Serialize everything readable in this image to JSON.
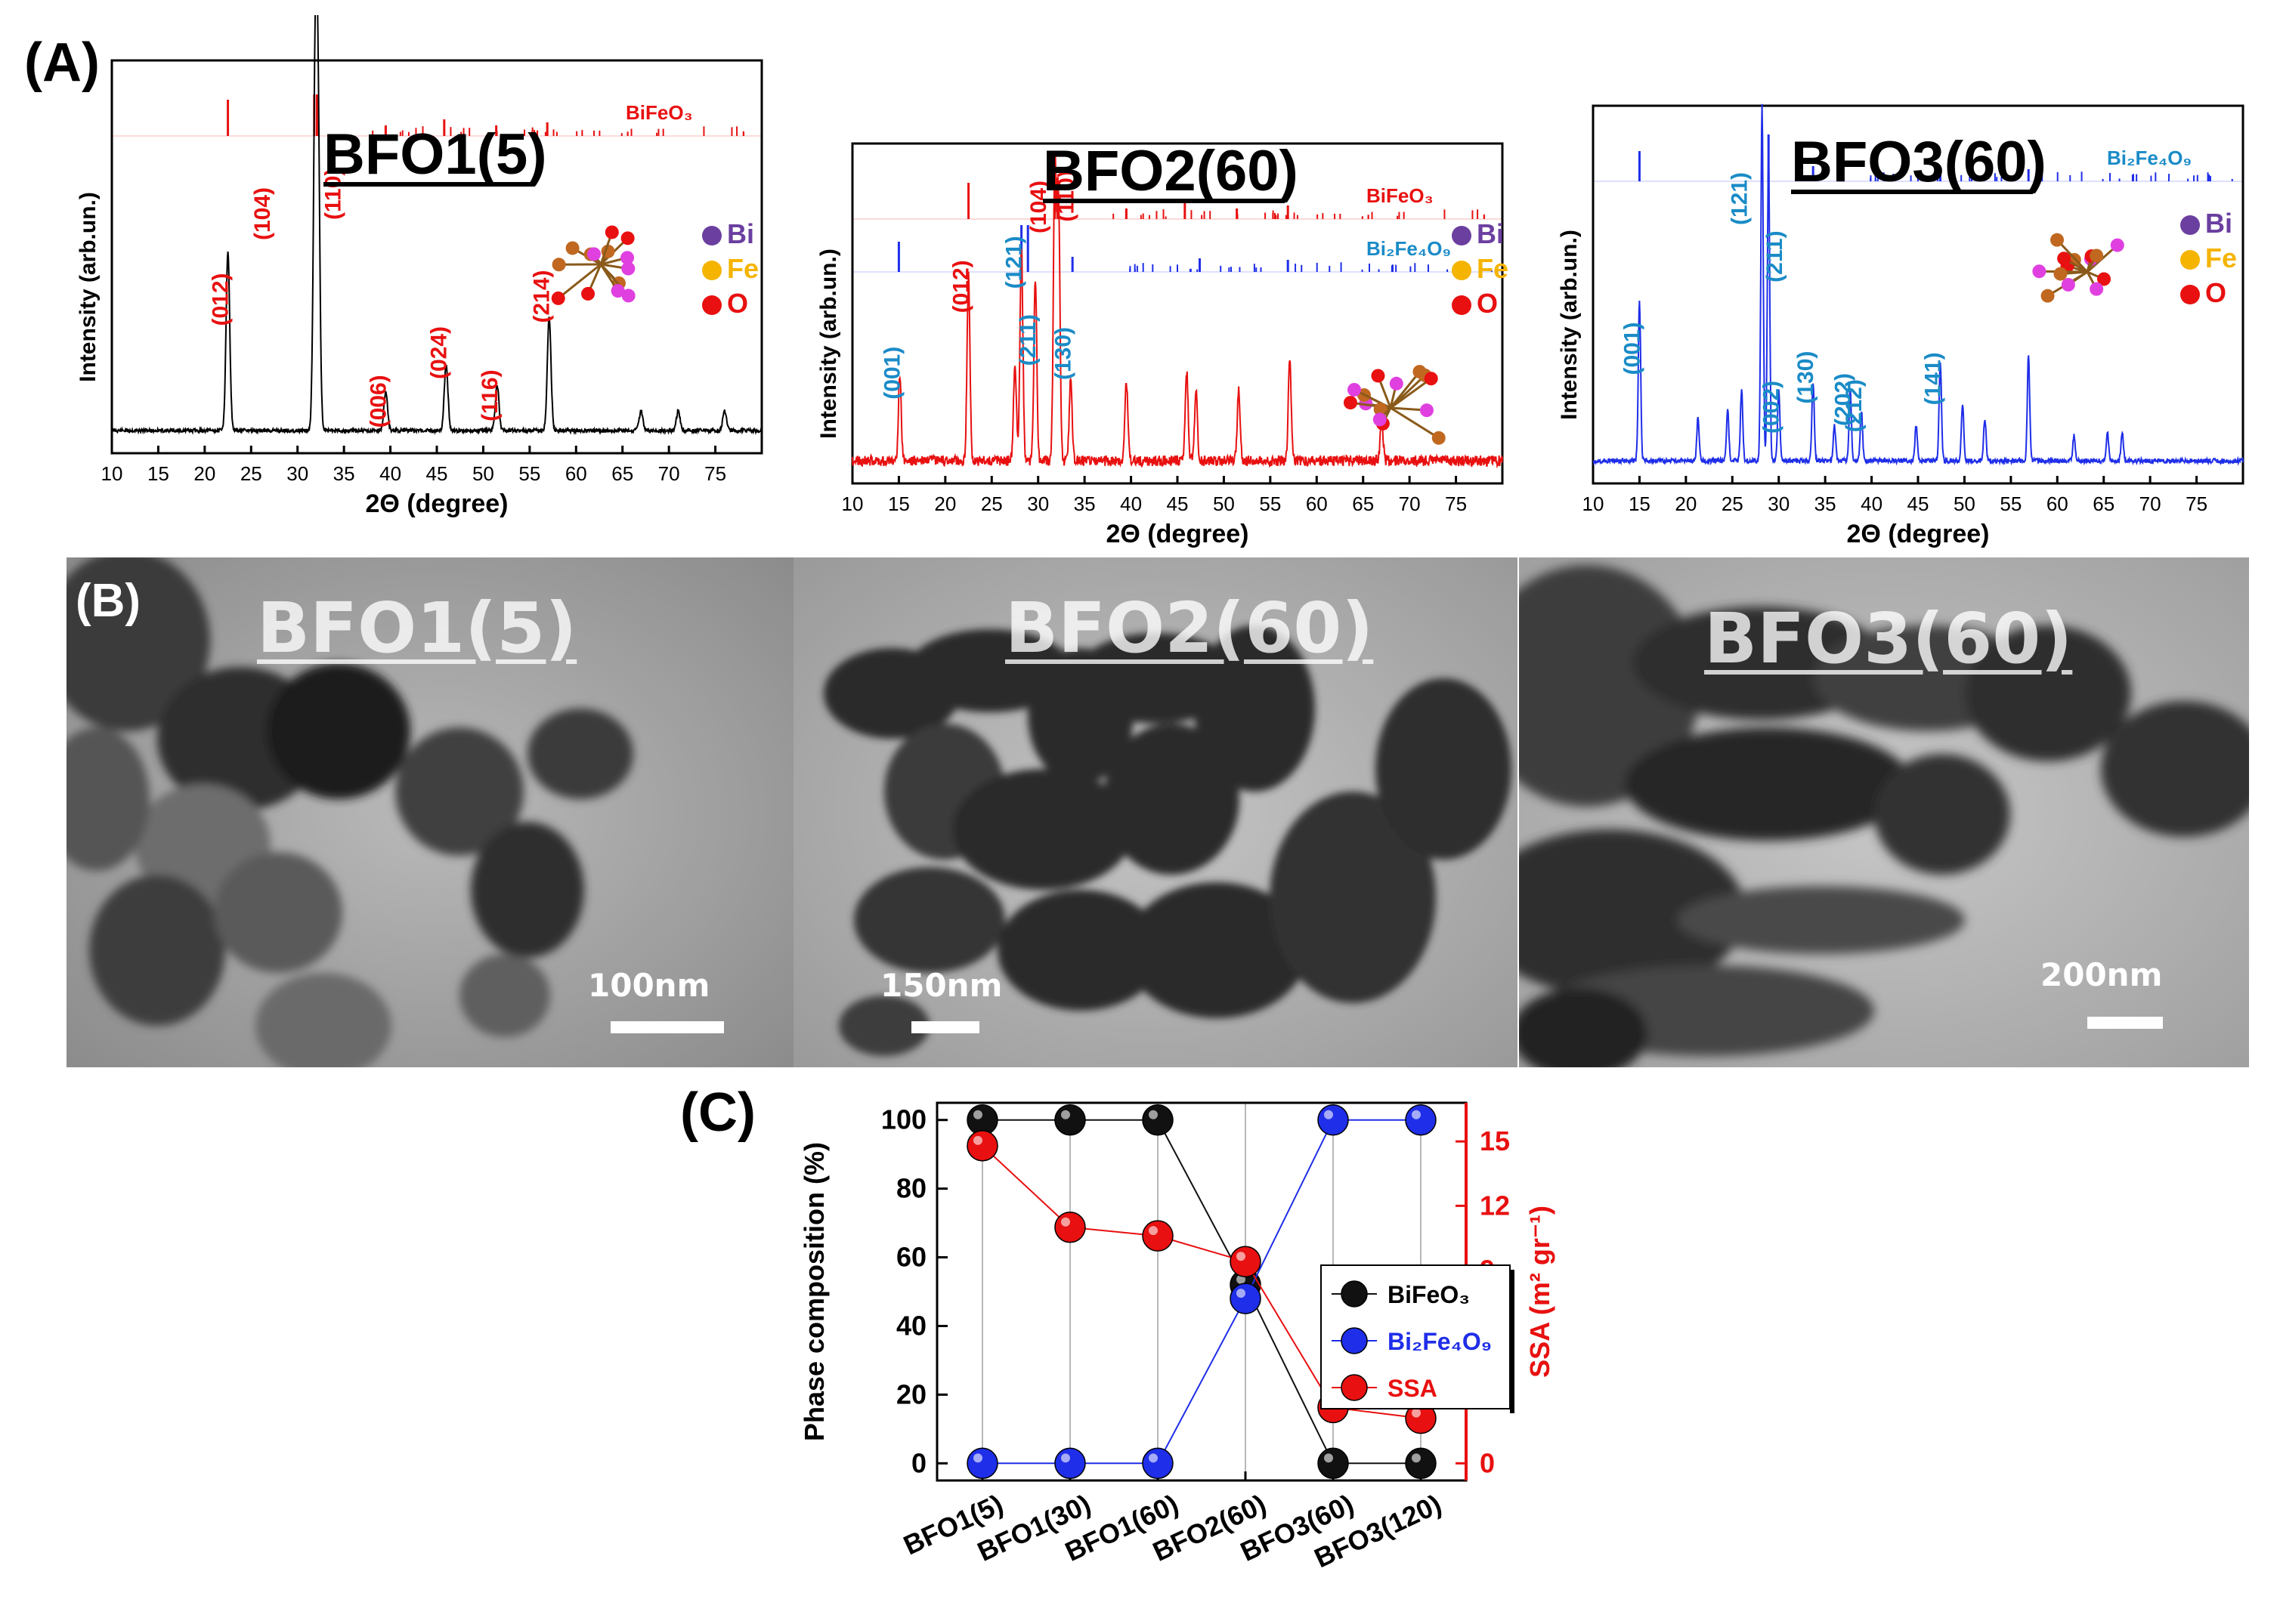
{
  "panels": {
    "a_label": "(A)",
    "b_label": "(B)",
    "c_label": "(C)"
  },
  "xrd": {
    "y_label": "Intensity (arb.un.)",
    "x_label": "2Θ (degree)",
    "x_ticks": [
      "10",
      "15",
      "20",
      "25",
      "30",
      "35",
      "40",
      "45",
      "50",
      "55",
      "60",
      "65",
      "70",
      "75"
    ],
    "xlim": [
      10,
      80
    ],
    "legend": [
      {
        "symbol": "Bi",
        "color": "#6b3fa0"
      },
      {
        "symbol": "Fe",
        "color": "#f5b400"
      },
      {
        "symbol": "O",
        "color": "#e81010"
      }
    ],
    "ref_labels": {
      "bifeo3": "BiFeO₃",
      "bi2fe4o9": "Bi₂Fe₄O₉"
    }
  },
  "chart_data": [
    {
      "type": "line",
      "title": "BFO1(5)",
      "xlabel": "2Θ (degree)",
      "ylabel": "Intensity (arb.un.)",
      "color": "#000000",
      "xlim": [
        10,
        80
      ],
      "reference_patterns": [
        "BiFeO₃"
      ],
      "peaks": [
        {
          "x": 22.5,
          "h": 0.55,
          "label": "(012)",
          "label_color": "#e81010"
        },
        {
          "x": 31.9,
          "h": 1.0,
          "label": "(104)",
          "label_color": "#e81010"
        },
        {
          "x": 32.2,
          "h": 0.9,
          "label": "(110)",
          "label_color": "#e81010"
        },
        {
          "x": 39.5,
          "h": 0.12,
          "label": "(006)",
          "label_color": "#e81010"
        },
        {
          "x": 46.0,
          "h": 0.2,
          "label": "(024)",
          "label_color": "#e81010"
        },
        {
          "x": 51.5,
          "h": 0.14,
          "label": "(116)",
          "label_color": "#e81010"
        },
        {
          "x": 57.1,
          "h": 0.35,
          "label": "(214)",
          "label_color": "#e81010"
        },
        {
          "x": 67.0,
          "h": 0.06
        },
        {
          "x": 71.0,
          "h": 0.06
        },
        {
          "x": 76.0,
          "h": 0.06
        }
      ]
    },
    {
      "type": "line",
      "title": "BFO2(60)",
      "xlabel": "2Θ (degree)",
      "ylabel": "Intensity (arb.un.)",
      "color": "#e81010",
      "xlim": [
        10,
        80
      ],
      "reference_patterns": [
        "BiFeO₃",
        "Bi₂Fe₄O₉"
      ],
      "peaks": [
        {
          "x": 15.1,
          "h": 0.26,
          "label": "(001)",
          "label_color": "#1a8bc7"
        },
        {
          "x": 22.5,
          "h": 0.58,
          "label": "(012)",
          "label_color": "#e81010"
        },
        {
          "x": 28.2,
          "h": 0.68,
          "label": "(121)",
          "label_color": "#1a8bc7"
        },
        {
          "x": 29.7,
          "h": 0.58,
          "label": "(211)",
          "label_color": "#1a8bc7"
        },
        {
          "x": 31.8,
          "h": 0.95,
          "label": "(104)",
          "label_color": "#e81010"
        },
        {
          "x": 32.2,
          "h": 0.82,
          "label": "(110)",
          "label_color": "#e81010"
        },
        {
          "x": 33.5,
          "h": 0.25,
          "label": "(130)",
          "label_color": "#1a8bc7"
        },
        {
          "x": 27.5,
          "h": 0.3
        },
        {
          "x": 39.5,
          "h": 0.25
        },
        {
          "x": 46.0,
          "h": 0.28
        },
        {
          "x": 47.0,
          "h": 0.22
        },
        {
          "x": 51.6,
          "h": 0.22
        },
        {
          "x": 57.1,
          "h": 0.32
        },
        {
          "x": 67.0,
          "h": 0.12
        }
      ]
    },
    {
      "type": "line",
      "title": "BFO3(60)",
      "xlabel": "2Θ (degree)",
      "ylabel": "Intensity (arb.un.)",
      "color": "#1f2ee8",
      "xlim": [
        10,
        80
      ],
      "reference_patterns": [
        "Bi₂Fe₄O₉"
      ],
      "peaks": [
        {
          "x": 15.0,
          "h": 0.45,
          "label": "(001)",
          "label_color": "#1a8bc7"
        },
        {
          "x": 28.2,
          "h": 1.0,
          "label": "(121)",
          "label_color": "#1a8bc7"
        },
        {
          "x": 28.9,
          "h": 0.86,
          "label": "(211)",
          "label_color": "#1a8bc7"
        },
        {
          "x": 30.0,
          "h": 0.2,
          "label": "(002)",
          "label_color": "#1a8bc7"
        },
        {
          "x": 33.7,
          "h": 0.22,
          "label": "(130)",
          "label_color": "#1a8bc7"
        },
        {
          "x": 37.7,
          "h": 0.2,
          "label": "(202)",
          "label_color": "#1a8bc7"
        },
        {
          "x": 38.9,
          "h": 0.14,
          "label": "(212)",
          "label_color": "#1a8bc7"
        },
        {
          "x": 47.4,
          "h": 0.28,
          "label": "(141)",
          "label_color": "#1a8bc7"
        },
        {
          "x": 21.3,
          "h": 0.12
        },
        {
          "x": 24.5,
          "h": 0.14
        },
        {
          "x": 26.0,
          "h": 0.2
        },
        {
          "x": 36.0,
          "h": 0.1
        },
        {
          "x": 44.8,
          "h": 0.1
        },
        {
          "x": 49.8,
          "h": 0.16
        },
        {
          "x": 52.2,
          "h": 0.12
        },
        {
          "x": 56.9,
          "h": 0.3
        },
        {
          "x": 61.8,
          "h": 0.07
        },
        {
          "x": 65.4,
          "h": 0.08
        },
        {
          "x": 67.0,
          "h": 0.08
        }
      ]
    },
    {
      "type": "line",
      "xlabel": "",
      "ylabel": "Phase composition (%)",
      "y2label": "SSA (m² gr⁻¹)",
      "categories": [
        "BFO1(5)",
        "BFO1(30)",
        "BFO1(60)",
        "BFO2(60)",
        "BFO3(60)",
        "BFO3(120)"
      ],
      "ylim": [
        -5,
        105
      ],
      "y2lim": [
        -0.8,
        16.8
      ],
      "y_ticks": [
        0,
        20,
        40,
        60,
        80,
        100
      ],
      "y2_ticks": [
        0,
        3,
        6,
        9,
        12,
        15
      ],
      "grid": "vertical",
      "legend_position": "right",
      "series": [
        {
          "name": "BiFeO₃",
          "axis": "left",
          "color": "#111111",
          "values": [
            100,
            100,
            100,
            52,
            0,
            0
          ]
        },
        {
          "name": "Bi₂Fe₄O₉",
          "axis": "left",
          "color": "#1f2ee8",
          "values": [
            0,
            0,
            0,
            48,
            100,
            100
          ]
        },
        {
          "name": "SSA",
          "axis": "right",
          "color": "#e81010",
          "values": [
            14.8,
            11.0,
            10.6,
            9.4,
            2.6,
            2.1
          ]
        }
      ]
    }
  ],
  "tem": [
    {
      "title": "BFO1(5)",
      "scale": "100nm"
    },
    {
      "title": "BFO2(60)",
      "scale": "150nm"
    },
    {
      "title": "BFO3(60)",
      "scale": "200nm"
    }
  ]
}
